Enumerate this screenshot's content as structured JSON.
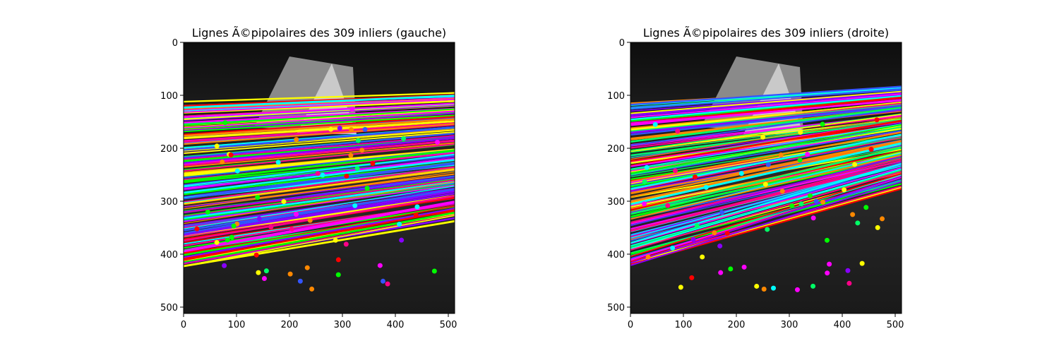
{
  "chart_data": [
    {
      "type": "image",
      "title": "Lignes Ã©pipolaires des 309 inliers (gauche)",
      "xlabel": "",
      "ylabel": "",
      "xlim": [
        0,
        512
      ],
      "ylim": [
        512,
        0
      ],
      "xticks": [
        0,
        100,
        200,
        300,
        400,
        500
      ],
      "yticks": [
        0,
        100,
        200,
        300,
        400,
        500
      ],
      "grid": false
    },
    {
      "type": "image",
      "title": "Lignes Ã©pipolaires des 309 inliers (droite)",
      "xlabel": "",
      "ylabel": "",
      "xlim": [
        0,
        512
      ],
      "ylim": [
        512,
        0
      ],
      "xticks": [
        0,
        100,
        200,
        300,
        400,
        500
      ],
      "yticks": [
        0,
        100,
        200,
        300,
        400,
        500
      ],
      "grid": false
    }
  ],
  "colors": {
    "image_background": "#141414",
    "line_palette": [
      "#ff0000",
      "#00ff66",
      "#3355ff",
      "#ff00ff",
      "#00ffff",
      "#ffff00",
      "#ff8800",
      "#8800ff",
      "#00ff00",
      "#ff0088"
    ]
  }
}
